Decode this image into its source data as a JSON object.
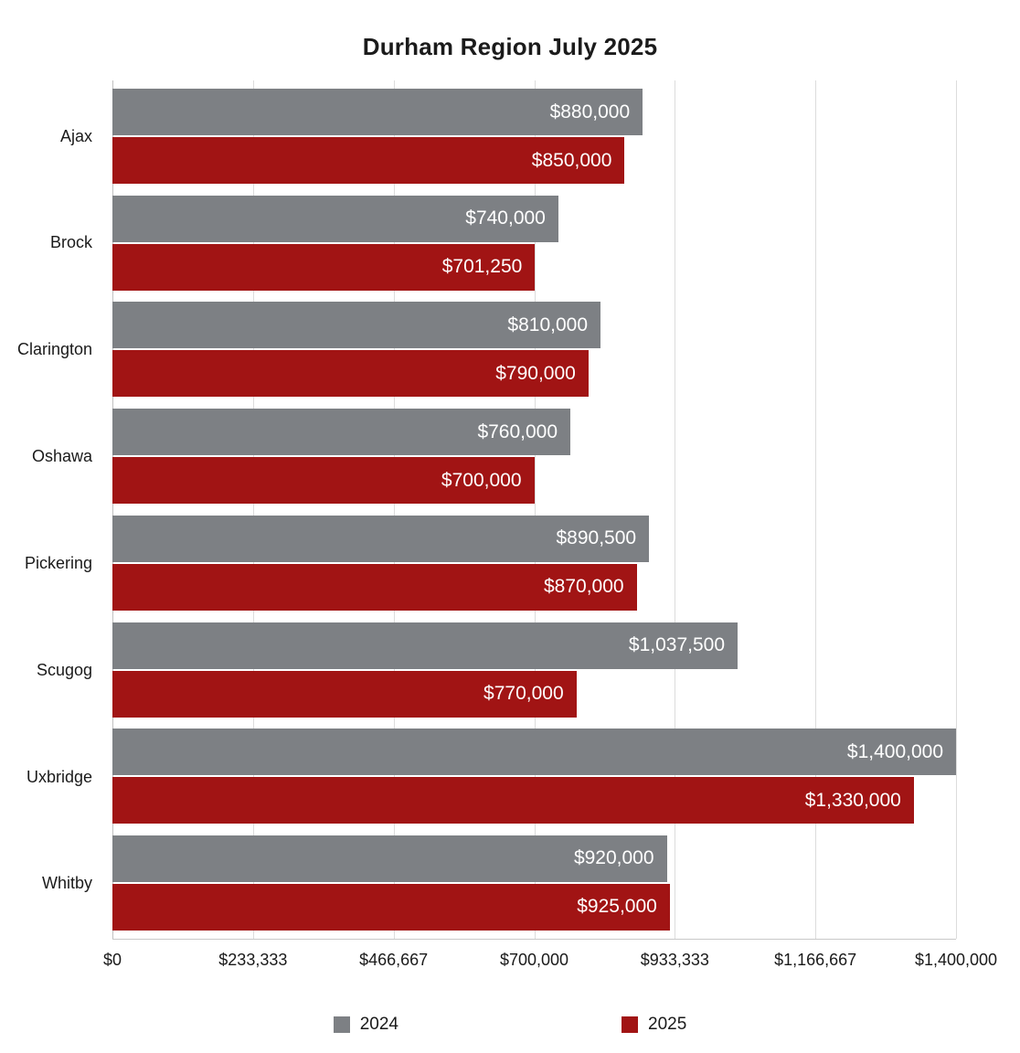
{
  "title": "Durham Region July 2025",
  "chart_data": {
    "type": "bar",
    "orientation": "horizontal",
    "title": "Durham Region July 2025",
    "categories": [
      "Ajax",
      "Brock",
      "Clarington",
      "Oshawa",
      "Pickering",
      "Scugog",
      "Uxbridge",
      "Whitby"
    ],
    "series": [
      {
        "name": "2024",
        "color": "#7d8084",
        "values": [
          880000,
          740000,
          810000,
          760000,
          890500,
          1037500,
          1400000,
          920000
        ],
        "labels": [
          "$880,000",
          "$740,000",
          "$810,000",
          "$760,000",
          "$890,500",
          "$1,037,500",
          "$1,400,000",
          "$920,000"
        ]
      },
      {
        "name": "2025",
        "color": "#a11414",
        "values": [
          850000,
          701250,
          790000,
          700000,
          870000,
          770000,
          1330000,
          925000
        ],
        "labels": [
          "$850,000",
          "$701,250",
          "$790,000",
          "$700,000",
          "$870,000",
          "$770,000",
          "$1,330,000",
          "$925,000"
        ]
      }
    ],
    "xlim": [
      0,
      1400000
    ],
    "x_ticks": [
      "$0",
      "$233,333",
      "$466,667",
      "$700,000",
      "$933,333",
      "$1,166,667",
      "$1,400,000"
    ],
    "xlabel": "",
    "ylabel": "",
    "grid": true,
    "legend_position": "bottom"
  }
}
